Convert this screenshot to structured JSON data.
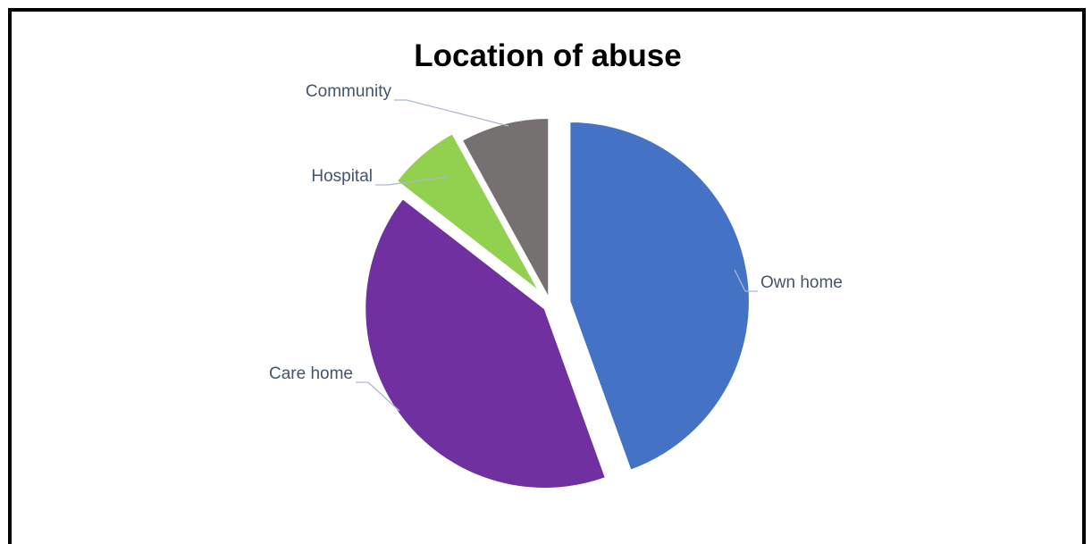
{
  "chart_data": {
    "type": "pie",
    "title": "Location of abuse",
    "slices": [
      {
        "label": "Own home",
        "value": 44.5,
        "color": "#4472c4"
      },
      {
        "label": "Care home",
        "value": 41,
        "color": "#7030a0"
      },
      {
        "label": "Hospital",
        "value": 6.5,
        "color": "#92d050"
      },
      {
        "label": "Community",
        "value": 8,
        "color": "#767171"
      }
    ],
    "exploded": true,
    "legend": "none",
    "data_labels": "category-name-outside"
  }
}
